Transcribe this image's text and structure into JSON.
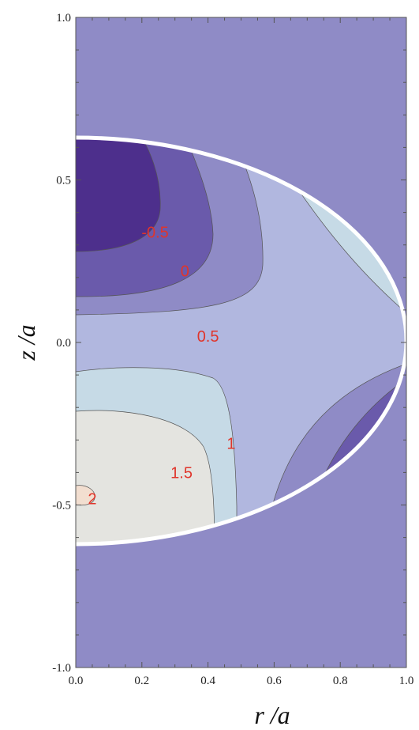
{
  "chart_data": {
    "type": "contour",
    "xlabel": "r /a",
    "ylabel": "z /a",
    "xlim": [
      0,
      1
    ],
    "ylim": [
      -1,
      1
    ],
    "x_ticks": [
      "0.0",
      "0.2",
      "0.4",
      "0.6",
      "0.8",
      "1.0"
    ],
    "y_ticks": [
      "1.0",
      "0.5",
      "0.0",
      "-0.5",
      "-1.0"
    ],
    "contour_levels": [
      -0.5,
      0,
      0.5,
      1,
      1.5,
      2
    ],
    "contour_labels": [
      {
        "text": "-0.5",
        "r": 0.24,
        "z": 0.34
      },
      {
        "text": "0",
        "r": 0.33,
        "z": 0.22
      },
      {
        "text": "0.5",
        "r": 0.4,
        "z": 0.02
      },
      {
        "text": "1",
        "r": 0.47,
        "z": -0.31
      },
      {
        "text": "1.5",
        "r": 0.32,
        "z": -0.4
      },
      {
        "text": "2",
        "r": 0.05,
        "z": -0.48
      }
    ],
    "boundary": {
      "shape": "half-ellipse",
      "r_semi_axis": 1.0,
      "z_semi_axis": 0.625
    },
    "colors": {
      "outside": "#8f8bc6",
      "band_below_-0.5": "#4d2f8c",
      "band_-0.5_0": "#6a5aab",
      "band_0_0.5": "#8f8bc6",
      "band_0.5_1": "#b1b7df",
      "band_1_1.5": "#c6dae6",
      "band_1.5_2": "#e4e4e0",
      "band_above_2": "#f2ded0",
      "boundary": "#ffffff",
      "label": "#e0352b"
    }
  }
}
